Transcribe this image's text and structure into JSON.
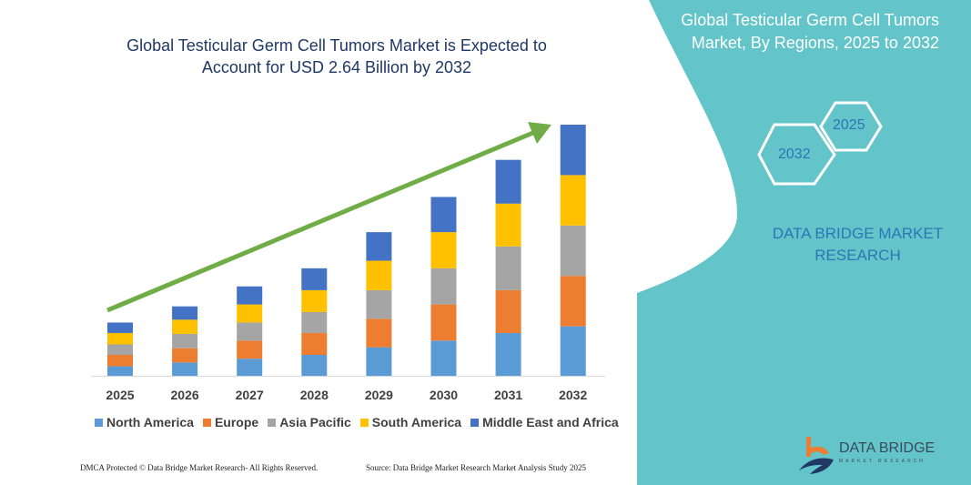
{
  "chart_data": {
    "type": "bar",
    "stacked": true,
    "title": "Global Testicular Germ Cell Tumors Market is Expected to Account for USD 2.64 Billion by 2032",
    "categories": [
      "2025",
      "2026",
      "2027",
      "2028",
      "2029",
      "2030",
      "2031",
      "2032"
    ],
    "series": [
      {
        "name": "North America",
        "color": "#5b9bd5",
        "values": [
          0.1,
          0.14,
          0.18,
          0.22,
          0.3,
          0.37,
          0.45,
          0.52
        ]
      },
      {
        "name": "Europe",
        "color": "#ed7d31",
        "values": [
          0.12,
          0.15,
          0.19,
          0.23,
          0.3,
          0.38,
          0.45,
          0.53
        ]
      },
      {
        "name": "Asia Pacific",
        "color": "#a5a5a5",
        "values": [
          0.11,
          0.15,
          0.19,
          0.22,
          0.3,
          0.38,
          0.46,
          0.53
        ]
      },
      {
        "name": "South America",
        "color": "#ffc000",
        "values": [
          0.12,
          0.15,
          0.19,
          0.23,
          0.31,
          0.38,
          0.45,
          0.53
        ]
      },
      {
        "name": "Middle East and Africa",
        "color": "#4472c4",
        "values": [
          0.11,
          0.14,
          0.19,
          0.23,
          0.3,
          0.37,
          0.46,
          0.53
        ]
      }
    ],
    "ylabel": "",
    "xlabel": "",
    "ylim": [
      0,
      2.64
    ],
    "grid": false,
    "legend": "bottom",
    "trend_arrow_color": "#70ad47"
  },
  "title_line1": "Global Testicular Germ Cell Tumors Market is Expected to",
  "title_line2": "Account for USD 2.64 Billion by 2032",
  "side": {
    "title_line1": "Global Testicular Germ Cell Tumors",
    "title_line2": "Market, By Regions, 2025 to 2032",
    "hex_a": "2025",
    "hex_b": "2032",
    "brand_line1": "DATA BRIDGE MARKET",
    "brand_line2": "RESEARCH",
    "panel_color": "#63c5c9"
  },
  "footer": {
    "left": "DMCA Protected © Data Bridge Market Research-  All Rights Reserved.",
    "right": "Source: Data Bridge Market Research  Market Analysis Study 2025"
  },
  "logo": {
    "name": "DATA BRIDGE",
    "tagline": "MARKET RESEARCH"
  }
}
